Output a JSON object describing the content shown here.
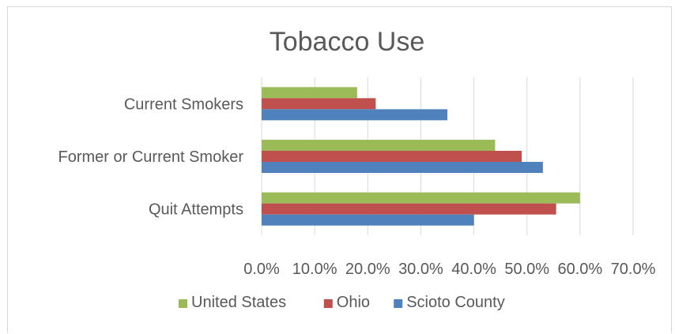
{
  "chart_data": {
    "type": "bar",
    "orientation": "horizontal",
    "title": "Tobacco Use",
    "categories": [
      "Current Smokers",
      "Former or Current Smoker",
      "Quit Attempts"
    ],
    "series": [
      {
        "name": "United States",
        "color": "#9bbb59",
        "values": [
          18,
          44,
          60
        ]
      },
      {
        "name": "Ohio",
        "color": "#c0504d",
        "values": [
          21.5,
          49,
          55.5
        ]
      },
      {
        "name": "Scioto County",
        "color": "#4f81bd",
        "values": [
          35,
          53,
          40
        ]
      }
    ],
    "xlim": [
      0,
      70
    ],
    "tick_labels": [
      "0.0%",
      "10.0%",
      "20.0%",
      "30.0%",
      "40.0%",
      "50.0%",
      "60.0%",
      "70.0%"
    ],
    "grid": true,
    "legend_position": "bottom"
  }
}
